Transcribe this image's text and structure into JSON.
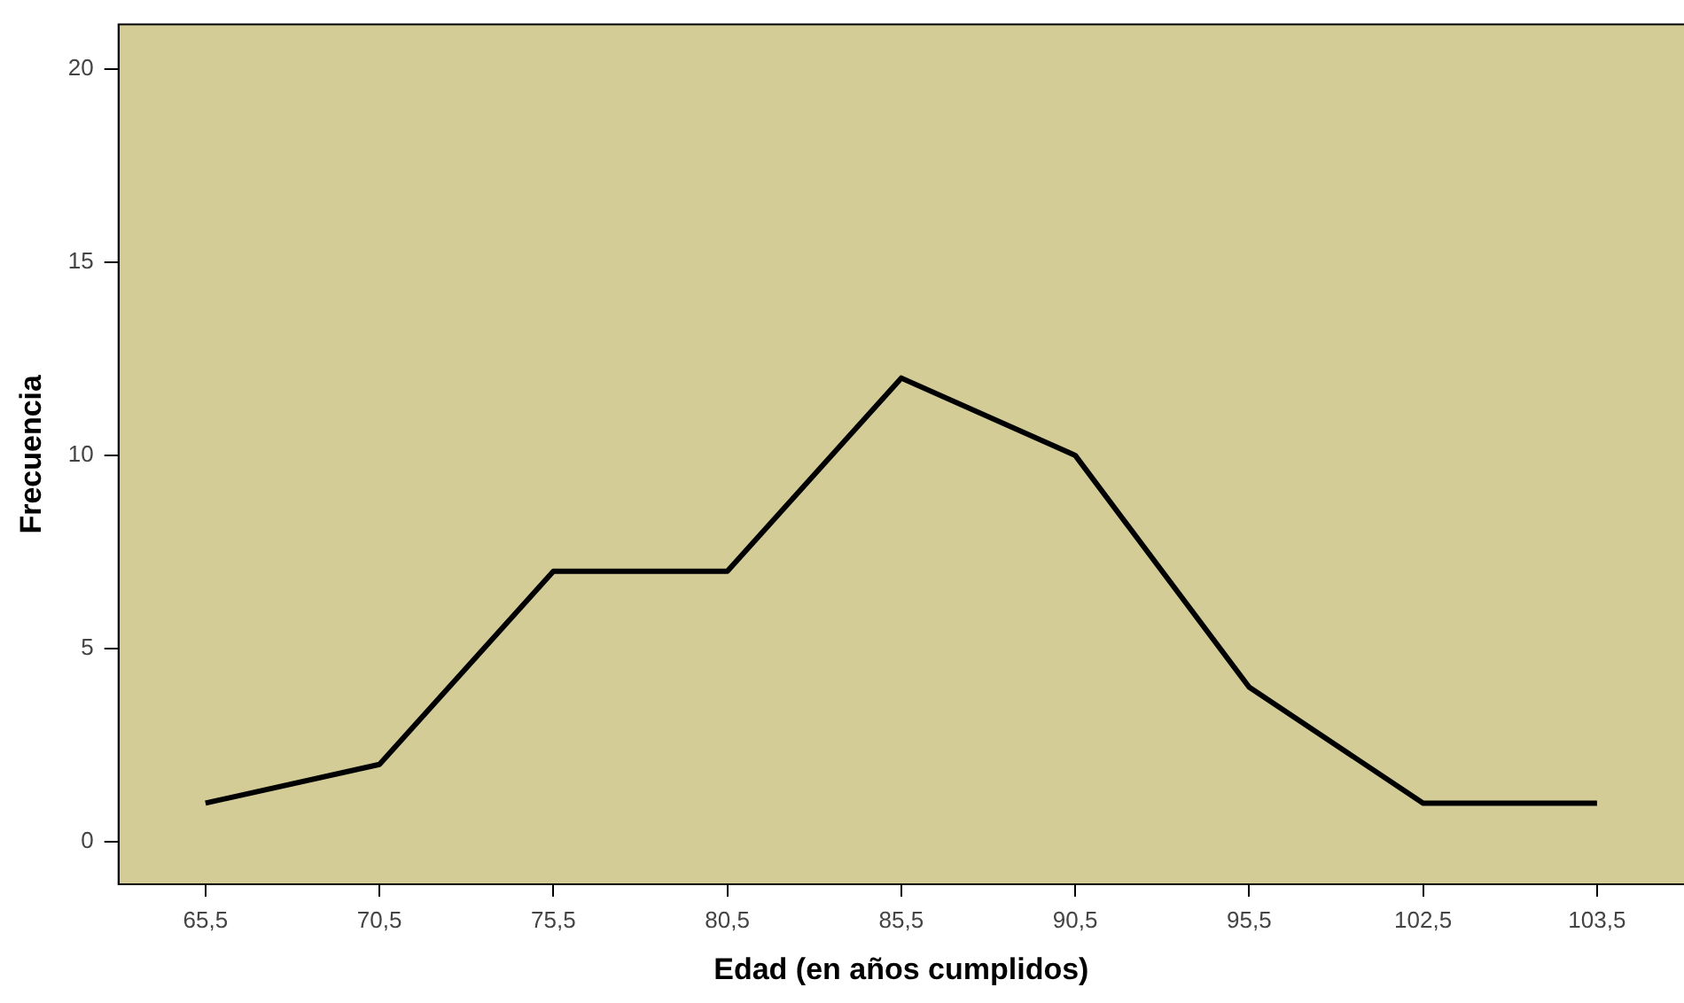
{
  "chart_data": {
    "type": "line",
    "xlabel": "Edad (en años cumplidos)",
    "ylabel": "Frecuencia",
    "categories": [
      "65,5",
      "70,5",
      "75,5",
      "80,5",
      "85,5",
      "90,5",
      "95,5",
      "102,5",
      "103,5"
    ],
    "series": [
      {
        "color": "#000000",
        "values": [
          1,
          2,
          7,
          7,
          12,
          10,
          4,
          1,
          1
        ]
      }
    ],
    "ylim": [
      -1.1,
      21.15
    ],
    "yticks": [
      0,
      5,
      10,
      15,
      20
    ],
    "grid": false,
    "legend": false,
    "marker": "none",
    "line_style": "solid"
  }
}
